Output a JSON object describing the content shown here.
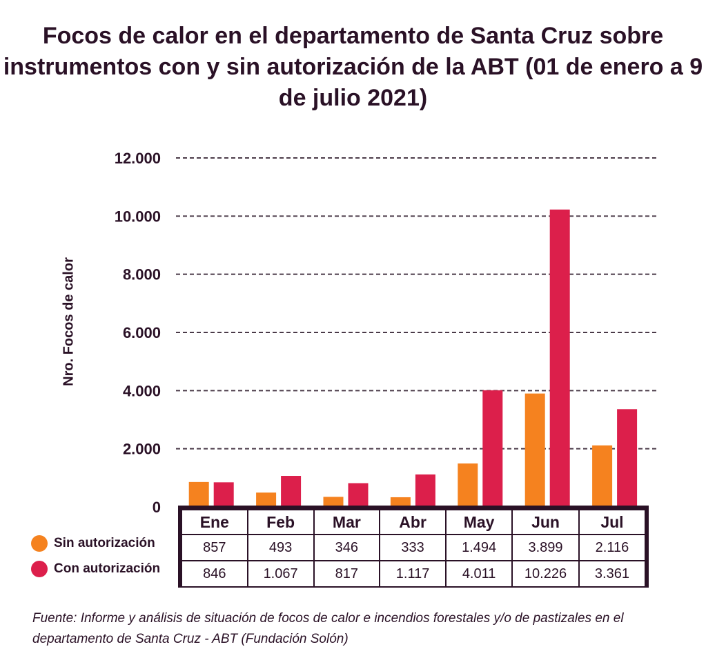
{
  "chart_data": {
    "type": "bar",
    "title": "Focos de calor en el departamento de Santa Cruz sobre instrumentos con y sin autorización de la ABT (01 de enero a 9 de julio 2021)",
    "ylabel": "Nro. Focos de calor",
    "xlabel": "",
    "ylim": [
      0,
      12000
    ],
    "yticks": [
      "0",
      "2.000",
      "4.000",
      "6.000",
      "8.000",
      "10.000",
      "12.000"
    ],
    "categories": [
      "Ene",
      "Feb",
      "Mar",
      "Abr",
      "May",
      "Jun",
      "Jul"
    ],
    "series": [
      {
        "name": "Sin autorización",
        "color": "#f5821f",
        "values": [
          857,
          493,
          346,
          333,
          1494,
          3899,
          2116
        ],
        "labels": [
          "857",
          "493",
          "346",
          "333",
          "1.494",
          "3.899",
          "2.116"
        ]
      },
      {
        "name": "Con autorización",
        "color": "#dc1f4b",
        "values": [
          846,
          1067,
          817,
          1117,
          4011,
          10226,
          3361
        ],
        "labels": [
          "846",
          "1.067",
          "817",
          "1.117",
          "4.011",
          "10.226",
          "3.361"
        ]
      }
    ],
    "grid": true,
    "legend": "bottom-left"
  },
  "source": "Fuente: Informe y análisis de situación de focos de calor e incendios forestales y/o de pastizales en el departamento de Santa Cruz - ABT (Fundación Solón)"
}
